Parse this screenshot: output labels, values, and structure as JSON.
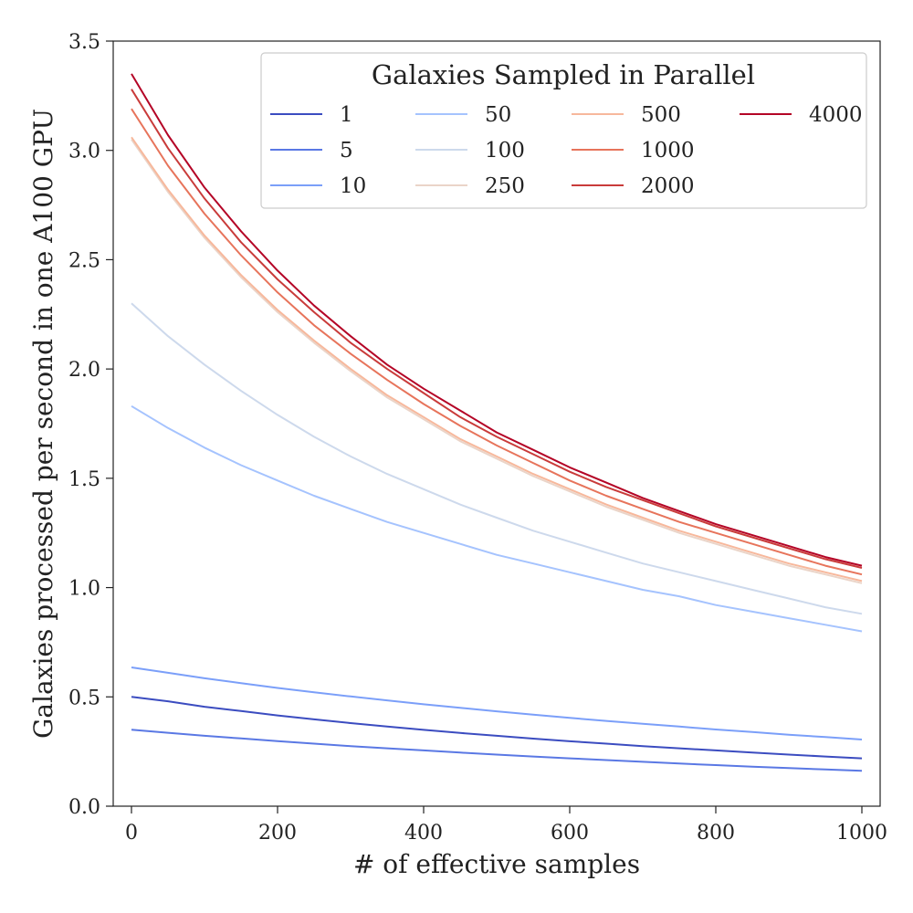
{
  "chart_data": {
    "type": "line",
    "title": "",
    "xlabel": "# of effective samples",
    "ylabel": "Galaxies processed per second in one A100 GPU",
    "xlim": [
      -25,
      1025
    ],
    "ylim": [
      0.0,
      3.5
    ],
    "xticks": [
      "0",
      "200",
      "400",
      "600",
      "800",
      "1000"
    ],
    "yticks": [
      "0.0",
      "0.5",
      "1.0",
      "1.5",
      "2.0",
      "2.5",
      "3.0",
      "3.5"
    ],
    "grid": false,
    "legend": {
      "title": "Galaxies Sampled in Parallel",
      "placement": "top-right",
      "columns": 4
    },
    "x": [
      0,
      50,
      100,
      150,
      200,
      250,
      300,
      350,
      400,
      450,
      500,
      550,
      600,
      650,
      700,
      750,
      800,
      850,
      900,
      950,
      1000
    ],
    "series": [
      {
        "name": "1",
        "color": "#3b4cc0",
        "values": [
          0.5,
          0.48,
          0.455,
          0.435,
          0.415,
          0.397,
          0.38,
          0.364,
          0.349,
          0.335,
          0.322,
          0.309,
          0.297,
          0.286,
          0.275,
          0.265,
          0.255,
          0.245,
          0.236,
          0.227,
          0.219
        ]
      },
      {
        "name": "5",
        "color": "#5a78e4",
        "values": [
          0.35,
          0.336,
          0.322,
          0.31,
          0.298,
          0.286,
          0.275,
          0.265,
          0.255,
          0.245,
          0.236,
          0.227,
          0.219,
          0.211,
          0.203,
          0.195,
          0.188,
          0.181,
          0.174,
          0.168,
          0.162
        ]
      },
      {
        "name": "10",
        "color": "#7b9ff9",
        "values": [
          0.635,
          0.61,
          0.585,
          0.563,
          0.541,
          0.521,
          0.502,
          0.484,
          0.466,
          0.45,
          0.434,
          0.419,
          0.404,
          0.39,
          0.377,
          0.364,
          0.351,
          0.339,
          0.327,
          0.316,
          0.305
        ]
      },
      {
        "name": "50",
        "color": "#a5c3fe",
        "values": [
          1.83,
          1.73,
          1.64,
          1.56,
          1.49,
          1.42,
          1.36,
          1.3,
          1.25,
          1.2,
          1.15,
          1.11,
          1.07,
          1.03,
          0.99,
          0.96,
          0.92,
          0.89,
          0.86,
          0.83,
          0.8
        ]
      },
      {
        "name": "100",
        "color": "#cdd9ec",
        "values": [
          2.3,
          2.15,
          2.02,
          1.9,
          1.79,
          1.69,
          1.6,
          1.52,
          1.45,
          1.38,
          1.32,
          1.26,
          1.21,
          1.16,
          1.11,
          1.07,
          1.03,
          0.99,
          0.95,
          0.91,
          0.88
        ]
      },
      {
        "name": "250",
        "color": "#ead4c8",
        "values": [
          3.05,
          2.81,
          2.6,
          2.42,
          2.26,
          2.12,
          1.99,
          1.87,
          1.77,
          1.67,
          1.59,
          1.51,
          1.44,
          1.37,
          1.31,
          1.25,
          1.2,
          1.15,
          1.1,
          1.06,
          1.02
        ]
      },
      {
        "name": "500",
        "color": "#f7b89c",
        "values": [
          3.06,
          2.82,
          2.61,
          2.43,
          2.27,
          2.13,
          2.0,
          1.88,
          1.78,
          1.68,
          1.6,
          1.52,
          1.45,
          1.38,
          1.32,
          1.26,
          1.21,
          1.16,
          1.11,
          1.07,
          1.03
        ]
      },
      {
        "name": "1000",
        "color": "#e7745b",
        "values": [
          3.19,
          2.93,
          2.71,
          2.52,
          2.35,
          2.2,
          2.07,
          1.95,
          1.84,
          1.74,
          1.65,
          1.57,
          1.49,
          1.42,
          1.36,
          1.3,
          1.25,
          1.2,
          1.15,
          1.1,
          1.06
        ]
      },
      {
        "name": "2000",
        "color": "#c93b3a",
        "values": [
          3.28,
          3.01,
          2.78,
          2.58,
          2.41,
          2.26,
          2.12,
          2.0,
          1.89,
          1.78,
          1.69,
          1.61,
          1.53,
          1.46,
          1.4,
          1.34,
          1.28,
          1.23,
          1.18,
          1.13,
          1.09
        ]
      },
      {
        "name": "4000",
        "color": "#b40426",
        "values": [
          3.35,
          3.07,
          2.83,
          2.63,
          2.45,
          2.29,
          2.15,
          2.02,
          1.91,
          1.81,
          1.71,
          1.63,
          1.55,
          1.48,
          1.41,
          1.35,
          1.29,
          1.24,
          1.19,
          1.14,
          1.1
        ]
      }
    ]
  }
}
